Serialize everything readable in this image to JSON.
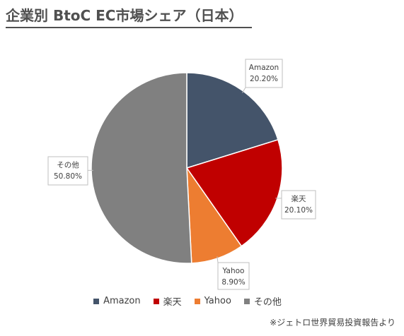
{
  "title": "企業別 BtoC EC市場シェア（日本）",
  "source_note": "※ジェトロ世界貿易投資報告より",
  "chart_data": {
    "type": "pie",
    "title": "企業別 BtoC EC市場シェア（日本）",
    "legend_position": "bottom",
    "slices": [
      {
        "label": "Amazon",
        "value": 20.2,
        "value_label": "20.20%",
        "color": "#44546a"
      },
      {
        "label": "楽天",
        "value": 20.1,
        "value_label": "20.10%",
        "color": "#c00000"
      },
      {
        "label": "Yahoo",
        "value": 8.9,
        "value_label": "8.90%",
        "color": "#ed7d31"
      },
      {
        "label": "その他",
        "value": 50.8,
        "value_label": "50.80%",
        "color": "#808080"
      }
    ]
  }
}
